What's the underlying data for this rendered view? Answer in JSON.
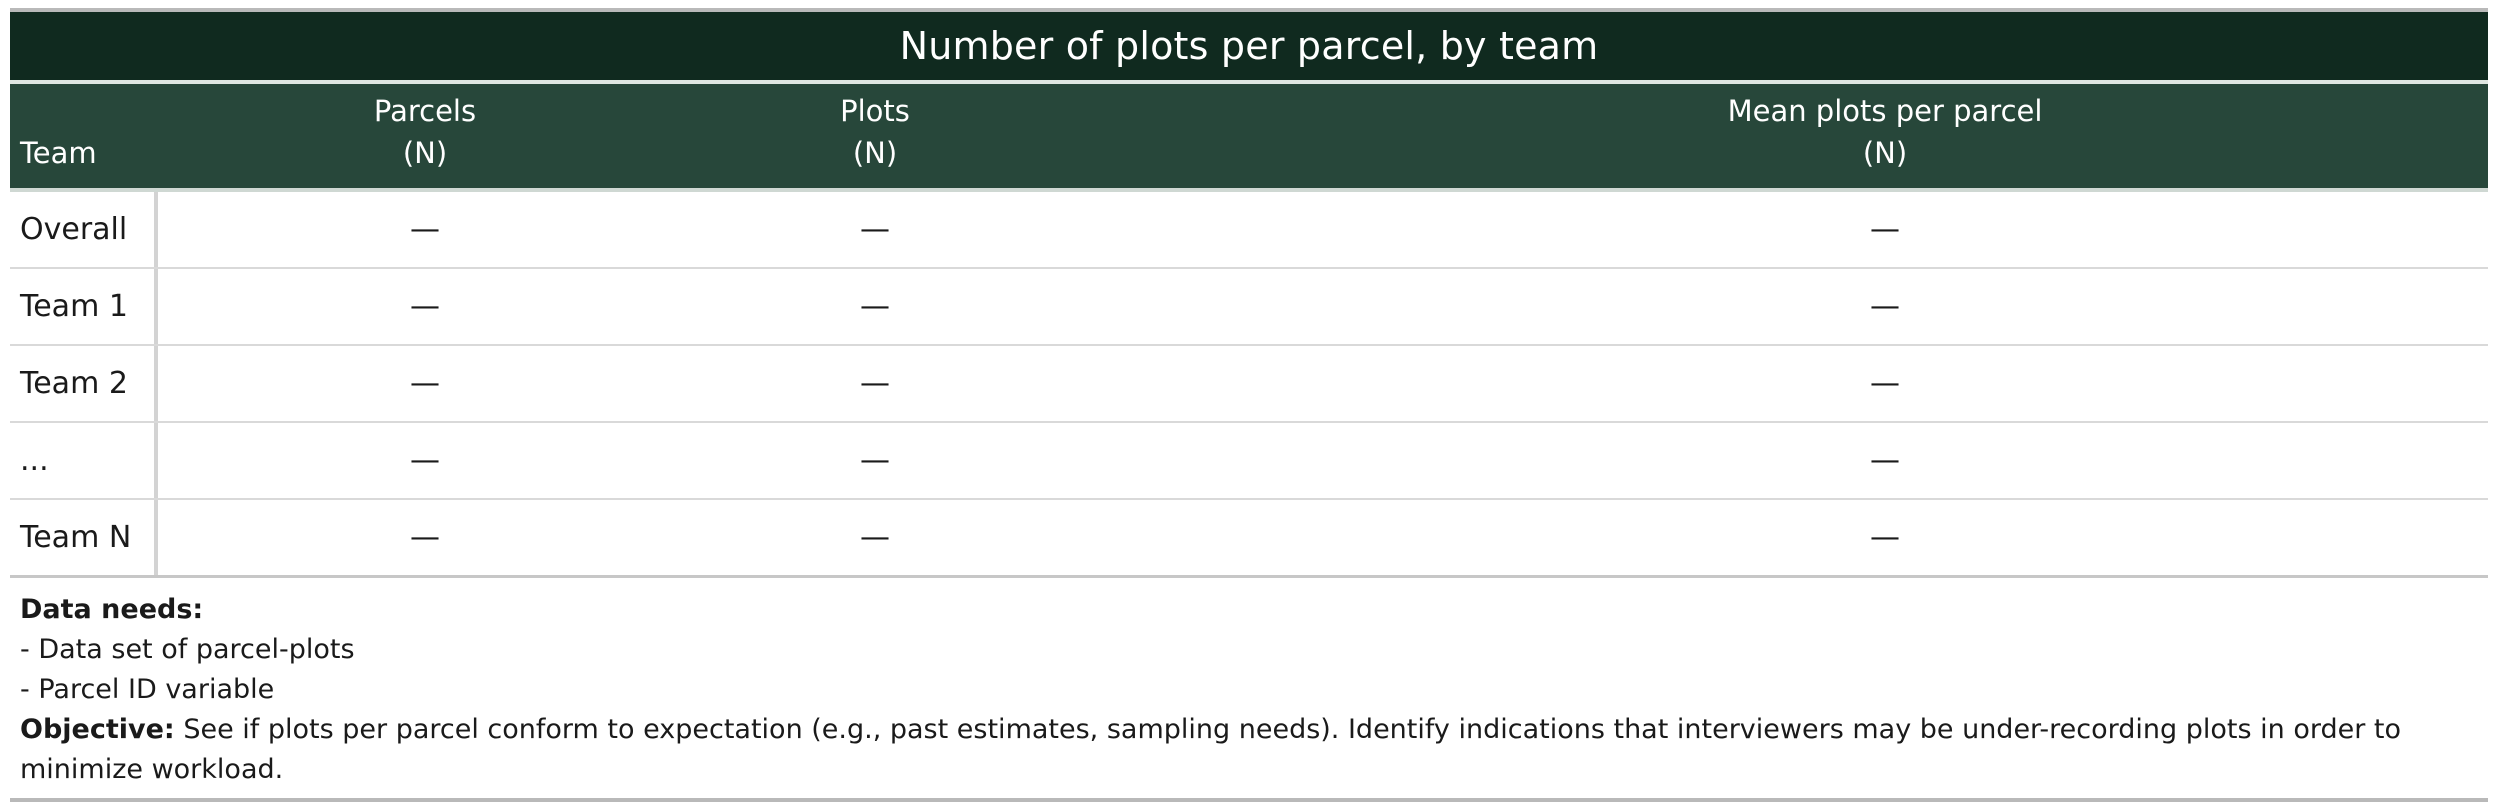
{
  "table": {
    "title": "Number of plots per parcel, by team",
    "headers": {
      "team": "Team",
      "parcels_line1": "Parcels",
      "parcels_line2": "(N)",
      "plots_line1": "Plots",
      "plots_line2": "(N)",
      "mean_line1": "Mean plots per parcel",
      "mean_line2": "(N)"
    },
    "rows": [
      {
        "team": "Overall",
        "parcels": "—",
        "plots": "—",
        "mean": "—"
      },
      {
        "team": "Team 1",
        "parcels": "—",
        "plots": "—",
        "mean": "—"
      },
      {
        "team": "Team 2",
        "parcels": "—",
        "plots": "—",
        "mean": "—"
      },
      {
        "team": "...",
        "parcels": "—",
        "plots": "—",
        "mean": "—"
      },
      {
        "team": "Team N",
        "parcels": "—",
        "plots": "—",
        "mean": "—"
      }
    ]
  },
  "notes": {
    "data_needs_label": "Data needs:",
    "data_needs_items": [
      "- Data set of parcel-plots",
      "- Parcel ID variable"
    ],
    "objective_label": "Objective:",
    "objective_text": "See if plots per parcel conform to expectation (e.g., past estimates, sampling needs). Identify indications that interviewers may be under-recording plots in order to minimize workload."
  }
}
